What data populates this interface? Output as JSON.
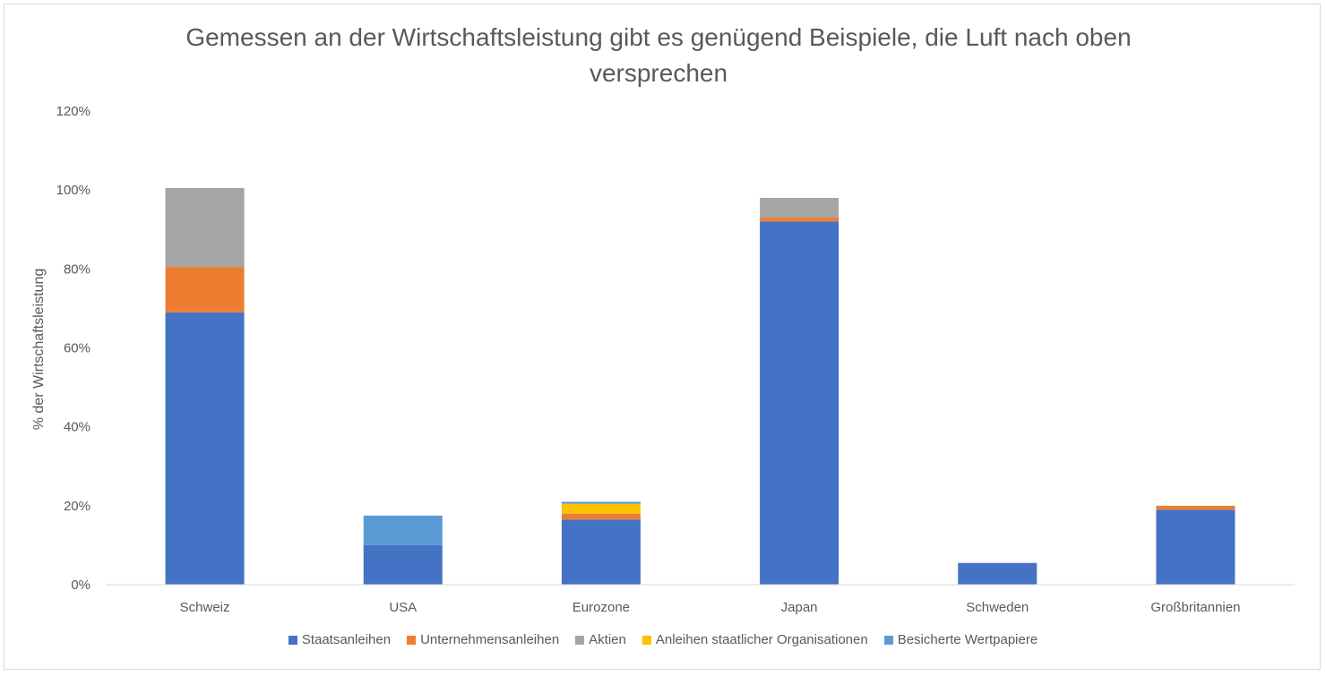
{
  "chart_data": {
    "type": "bar",
    "stacked": true,
    "title_lines": [
      "Gemessen an der Wirtschaftsleistung gibt es genügend Beispiele, die Luft nach oben",
      "versprechen"
    ],
    "xlabel": "",
    "ylabel": "% der Wirtschaftsleistung",
    "ylim": [
      0,
      120
    ],
    "yticks": [
      0,
      20,
      40,
      60,
      80,
      100,
      120
    ],
    "ytick_labels": [
      "0%",
      "20%",
      "40%",
      "60%",
      "80%",
      "100%",
      "120%"
    ],
    "categories": [
      "Schweiz",
      "USA",
      "Eurozone",
      "Japan",
      "Schweden",
      "Großbritannien"
    ],
    "series": [
      {
        "name": "Staatsanleihen",
        "color": "#4472C4",
        "values": [
          69,
          10,
          16.5,
          92,
          5.5,
          19
        ]
      },
      {
        "name": "Unternehmensanleihen",
        "color": "#ED7D31",
        "values": [
          11.5,
          0,
          1.5,
          1,
          0,
          1
        ]
      },
      {
        "name": "Aktien",
        "color": "#A5A5A5",
        "values": [
          20,
          0,
          0,
          5,
          0,
          0
        ]
      },
      {
        "name": "Anleihen staatlicher Organisationen",
        "color": "#FFC000",
        "values": [
          0,
          0,
          2.5,
          0,
          0,
          0
        ]
      },
      {
        "name": "Besicherte Wertpapiere",
        "color": "#5B9BD5",
        "values": [
          0,
          7.5,
          0.5,
          0,
          0,
          0
        ]
      }
    ],
    "grid": false,
    "legend_position": "bottom"
  }
}
